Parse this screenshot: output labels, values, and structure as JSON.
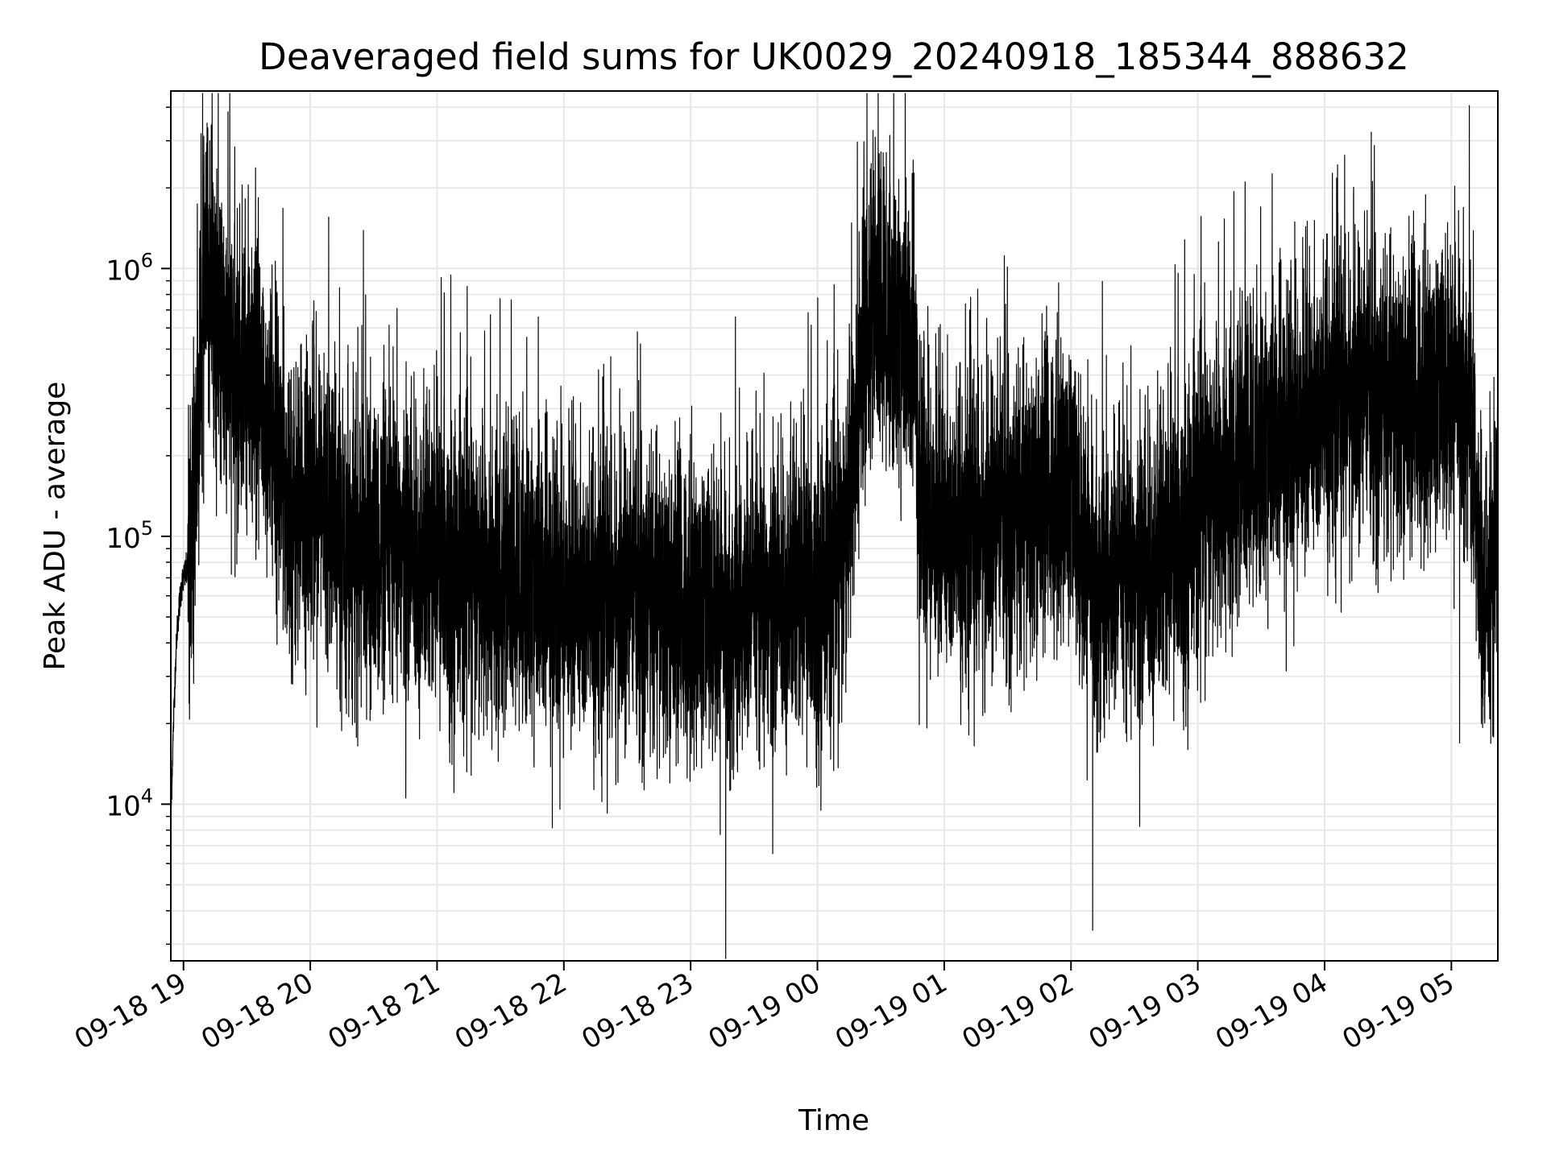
{
  "chart_data": {
    "type": "line",
    "title": "Deaveraged field sums for UK0029_20240918_185344_888632",
    "xlabel": "Time",
    "ylabel": "Peak ADU - average",
    "y_scale": "log",
    "ylim": [
      2600,
      4600000
    ],
    "xlim": [
      "2024-09-18 18:54",
      "2024-09-19 05:22"
    ],
    "grid": true,
    "line_color": "#000000",
    "grid_color": "#e6e6e6",
    "x_ticks": [
      {
        "value": "2024-09-18 19:00",
        "label": "09-18 19"
      },
      {
        "value": "2024-09-18 20:00",
        "label": "09-18 20"
      },
      {
        "value": "2024-09-18 21:00",
        "label": "09-18 21"
      },
      {
        "value": "2024-09-18 22:00",
        "label": "09-18 22"
      },
      {
        "value": "2024-09-18 23:00",
        "label": "09-18 23"
      },
      {
        "value": "2024-09-19 00:00",
        "label": "09-19 00"
      },
      {
        "value": "2024-09-19 01:00",
        "label": "09-19 01"
      },
      {
        "value": "2024-09-19 02:00",
        "label": "09-19 02"
      },
      {
        "value": "2024-09-19 03:00",
        "label": "09-19 03"
      },
      {
        "value": "2024-09-19 04:00",
        "label": "09-19 04"
      },
      {
        "value": "2024-09-19 05:00",
        "label": "09-19 05"
      }
    ],
    "y_ticks": [
      {
        "value": 10000,
        "base": "10",
        "exp": "4"
      },
      {
        "value": 100000,
        "base": "10",
        "exp": "5"
      },
      {
        "value": 1000000,
        "base": "10",
        "exp": "6"
      }
    ],
    "series": [
      {
        "points": [
          [
            "2024-09-18 18:54",
            8500
          ],
          [
            "2024-09-18 18:55",
            17000
          ],
          [
            "2024-09-18 18:56",
            30000
          ],
          [
            "2024-09-18 18:57",
            45000
          ],
          [
            "2024-09-18 18:58",
            55000
          ],
          [
            "2024-09-18 18:59",
            65000
          ],
          [
            "2024-09-18 19:00",
            70000
          ],
          [
            "2024-09-18 19:02",
            75000
          ],
          [
            "2024-09-18 19:04",
            90000
          ],
          [
            "2024-09-18 19:06",
            200000
          ],
          [
            "2024-09-18 19:08",
            420000
          ],
          [
            "2024-09-18 19:10",
            800000
          ],
          [
            "2024-09-18 19:12",
            1000000
          ],
          [
            "2024-09-18 19:14",
            900000
          ],
          [
            "2024-09-18 19:16",
            600000
          ],
          [
            "2024-09-18 19:18",
            500000
          ],
          [
            "2024-09-18 19:20",
            450000
          ],
          [
            "2024-09-18 19:22",
            480000
          ],
          [
            "2024-09-18 19:24",
            400000
          ],
          [
            "2024-09-18 19:26",
            350000
          ],
          [
            "2024-09-18 19:28",
            420000
          ],
          [
            "2024-09-18 19:30",
            380000
          ],
          [
            "2024-09-18 19:33",
            330000
          ],
          [
            "2024-09-18 19:36",
            300000
          ],
          [
            "2024-09-18 19:39",
            280000
          ],
          [
            "2024-09-18 19:42",
            260000
          ],
          [
            "2024-09-18 19:45",
            200000
          ],
          [
            "2024-09-18 19:48",
            150000
          ],
          [
            "2024-09-18 19:51",
            120000
          ],
          [
            "2024-09-18 19:54",
            110000
          ],
          [
            "2024-09-18 19:57",
            130000
          ],
          [
            "2024-09-18 20:00",
            160000
          ],
          [
            "2024-09-18 20:05",
            140000
          ],
          [
            "2024-09-18 20:10",
            120000
          ],
          [
            "2024-09-18 20:15",
            100000
          ],
          [
            "2024-09-18 20:20",
            95000
          ],
          [
            "2024-09-18 20:25",
            90000
          ],
          [
            "2024-09-18 20:30",
            85000
          ],
          [
            "2024-09-18 20:35",
            90000
          ],
          [
            "2024-09-18 20:40",
            95000
          ],
          [
            "2024-09-18 20:45",
            90000
          ],
          [
            "2024-09-18 20:50",
            80000
          ],
          [
            "2024-09-18 20:55",
            78000
          ],
          [
            "2024-09-18 21:00",
            85000
          ],
          [
            "2024-09-18 21:10",
            75000
          ],
          [
            "2024-09-18 21:20",
            70000
          ],
          [
            "2024-09-18 21:30",
            68000
          ],
          [
            "2024-09-18 21:40",
            66000
          ],
          [
            "2024-09-18 21:50",
            62000
          ],
          [
            "2024-09-18 22:00",
            60000
          ],
          [
            "2024-09-18 22:10",
            58000
          ],
          [
            "2024-09-18 22:20",
            56000
          ],
          [
            "2024-09-18 22:30",
            58000
          ],
          [
            "2024-09-18 22:40",
            60000
          ],
          [
            "2024-09-18 22:50",
            57000
          ],
          [
            "2024-09-18 23:00",
            55000
          ],
          [
            "2024-09-18 23:10",
            52000
          ],
          [
            "2024-09-18 23:20",
            50000
          ],
          [
            "2024-09-18 23:30",
            52000
          ],
          [
            "2024-09-18 23:40",
            56000
          ],
          [
            "2024-09-18 23:50",
            60000
          ],
          [
            "2024-09-18 23:58",
            62000
          ],
          [
            "2024-09-19 00:05",
            70000
          ],
          [
            "2024-09-19 00:12",
            80000
          ],
          [
            "2024-09-19 00:18",
            250000
          ],
          [
            "2024-09-19 00:22",
            600000
          ],
          [
            "2024-09-19 00:26",
            700000
          ],
          [
            "2024-09-19 00:30",
            650000
          ],
          [
            "2024-09-19 00:34",
            600000
          ],
          [
            "2024-09-19 00:38",
            550000
          ],
          [
            "2024-09-19 00:42",
            500000
          ],
          [
            "2024-09-19 00:46",
            480000
          ],
          [
            "2024-09-19 00:48",
            150000
          ],
          [
            "2024-09-19 00:52",
            120000
          ],
          [
            "2024-09-19 00:58",
            110000
          ],
          [
            "2024-09-19 01:05",
            100000
          ],
          [
            "2024-09-19 01:15",
            100000
          ],
          [
            "2024-09-19 01:25",
            110000
          ],
          [
            "2024-09-19 01:35",
            120000
          ],
          [
            "2024-09-19 01:45",
            140000
          ],
          [
            "2024-09-19 01:55",
            160000
          ],
          [
            "2024-09-19 02:00",
            150000
          ],
          [
            "2024-09-19 02:05",
            90000
          ],
          [
            "2024-09-19 02:12",
            70000
          ],
          [
            "2024-09-19 02:20",
            65000
          ],
          [
            "2024-09-19 02:28",
            68000
          ],
          [
            "2024-09-19 02:36",
            72000
          ],
          [
            "2024-09-19 02:44",
            80000
          ],
          [
            "2024-09-19 02:52",
            100000
          ],
          [
            "2024-09-19 03:00",
            130000
          ],
          [
            "2024-09-19 03:10",
            150000
          ],
          [
            "2024-09-19 03:20",
            180000
          ],
          [
            "2024-09-19 03:30",
            200000
          ],
          [
            "2024-09-19 03:40",
            230000
          ],
          [
            "2024-09-19 03:50",
            260000
          ],
          [
            "2024-09-19 04:00",
            300000
          ],
          [
            "2024-09-19 04:10",
            320000
          ],
          [
            "2024-09-19 04:20",
            330000
          ],
          [
            "2024-09-19 04:30",
            320000
          ],
          [
            "2024-09-19 04:40",
            330000
          ],
          [
            "2024-09-19 04:50",
            340000
          ],
          [
            "2024-09-19 05:00",
            350000
          ],
          [
            "2024-09-19 05:05",
            380000
          ],
          [
            "2024-09-19 05:09",
            300000
          ],
          [
            "2024-09-19 05:12",
            120000
          ],
          [
            "2024-09-19 05:14",
            60000
          ],
          [
            "2024-09-19 05:16",
            40000
          ],
          [
            "2024-09-19 05:18",
            50000
          ],
          [
            "2024-09-19 05:20",
            70000
          ],
          [
            "2024-09-19 05:22",
            110000
          ]
        ]
      }
    ]
  }
}
